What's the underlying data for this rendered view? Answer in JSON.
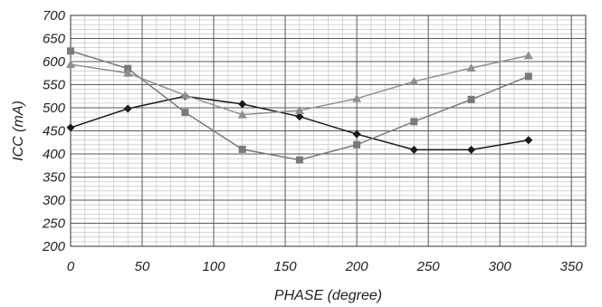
{
  "chart_data": {
    "type": "line",
    "xlabel": "PHASE (degree)",
    "ylabel": "ICC (mA)",
    "xlim": [
      0,
      360
    ],
    "ylim": [
      200,
      700
    ],
    "x_ticks": [
      0,
      50,
      100,
      150,
      200,
      250,
      300,
      350
    ],
    "y_ticks": [
      200,
      250,
      300,
      350,
      400,
      450,
      500,
      550,
      600,
      650,
      700
    ],
    "x_tick_labels": [
      "0",
      "50",
      "100",
      "150",
      "200",
      "250",
      "300",
      "350"
    ],
    "y_tick_labels": [
      "200",
      "250",
      "300",
      "350",
      "400",
      "450",
      "500",
      "550",
      "600",
      "650",
      "700"
    ],
    "grid": true,
    "minor_grid": true,
    "x": [
      0,
      40,
      80,
      120,
      160,
      200,
      240,
      280,
      320
    ],
    "series": [
      {
        "marker": "diamond",
        "color": "#1a1a1a",
        "values": [
          457,
          498,
          525,
          508,
          481,
          443,
          409,
          409,
          430
        ]
      },
      {
        "marker": "square",
        "color": "#7a7a7a",
        "values": [
          623,
          585,
          490,
          410,
          387,
          420,
          470,
          518,
          568
        ]
      },
      {
        "marker": "triangle",
        "color": "#8f8f8f",
        "values": [
          594,
          575,
          527,
          485,
          494,
          520,
          557,
          586,
          613
        ]
      }
    ]
  }
}
